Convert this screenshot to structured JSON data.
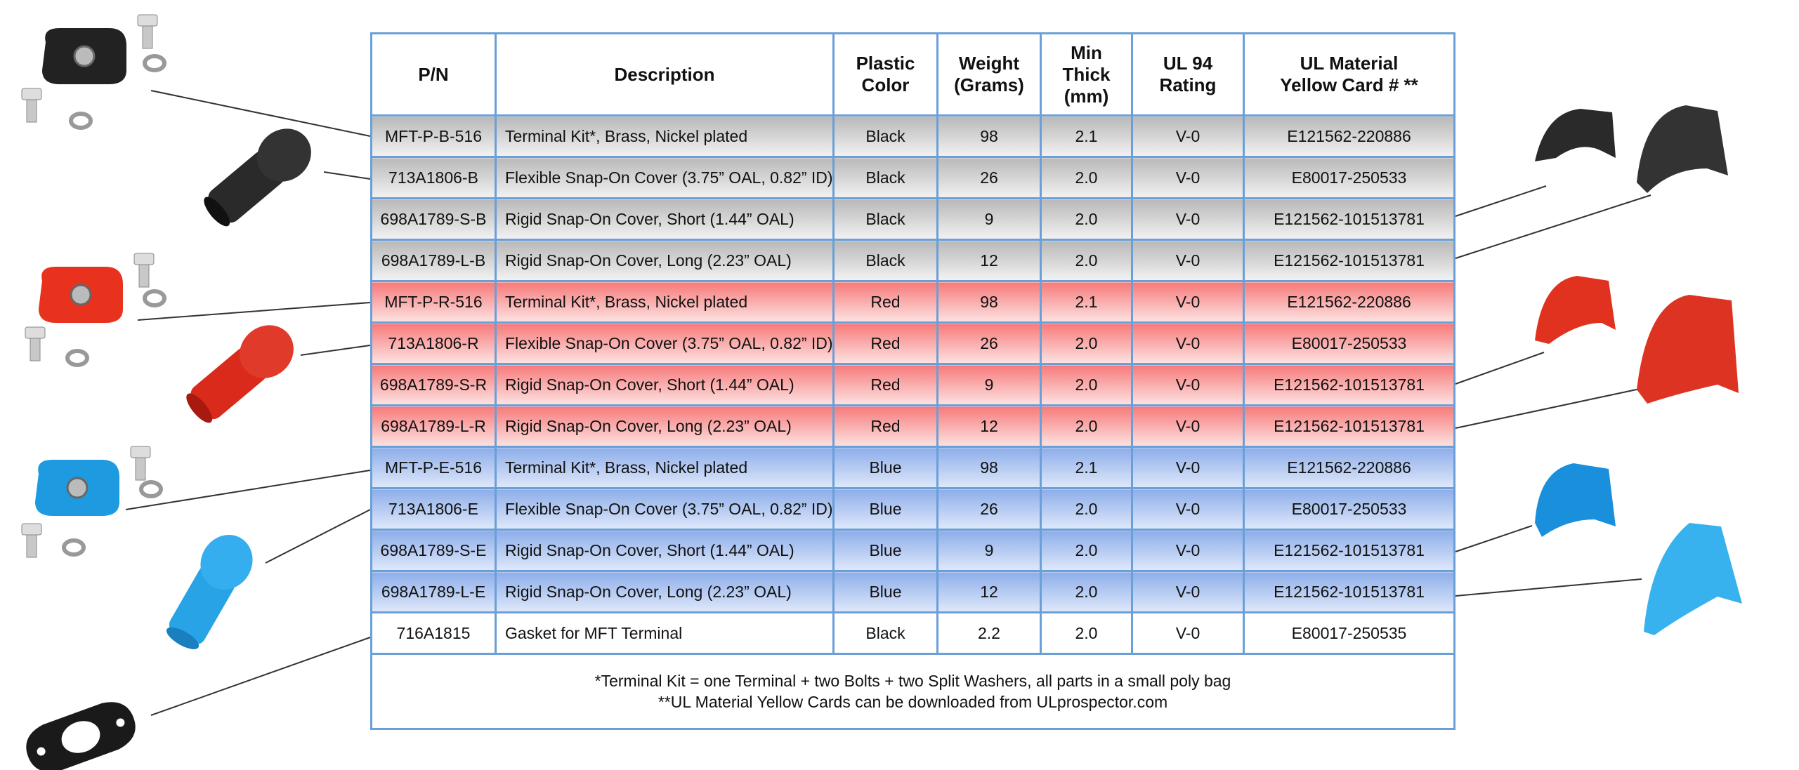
{
  "table": {
    "header": [
      [
        "P/N"
      ],
      [
        "Description"
      ],
      [
        "Plastic",
        "Color"
      ],
      [
        "Weight",
        "(Grams)"
      ],
      [
        "Min",
        "Thick",
        "(mm)"
      ],
      [
        "UL 94",
        "Rating"
      ],
      [
        "UL Material",
        "Yellow Card # **"
      ]
    ],
    "rows": [
      [
        "MFT-P-B-516",
        "Terminal Kit*, Brass, Nickel plated",
        "Black",
        "98",
        "2.1",
        "V-0",
        "E121562-220886"
      ],
      [
        "713A1806-B",
        "Flexible Snap-On Cover (3.75” OAL, 0.82” ID)",
        "Black",
        "26",
        "2.0",
        "V-0",
        "E80017-250533"
      ],
      [
        "698A1789-S-B",
        "Rigid Snap-On Cover, Short (1.44” OAL)",
        "Black",
        "9",
        "2.0",
        "V-0",
        "E121562-101513781"
      ],
      [
        "698A1789-L-B",
        "Rigid Snap-On Cover, Long (2.23” OAL)",
        "Black",
        "12",
        "2.0",
        "V-0",
        "E121562-101513781"
      ],
      [
        "MFT-P-R-516",
        "Terminal Kit*, Brass, Nickel plated",
        "Red",
        "98",
        "2.1",
        "V-0",
        "E121562-220886"
      ],
      [
        "713A1806-R",
        "Flexible Snap-On Cover (3.75” OAL, 0.82” ID)",
        "Red",
        "26",
        "2.0",
        "V-0",
        "E80017-250533"
      ],
      [
        "698A1789-S-R",
        "Rigid Snap-On Cover, Short (1.44” OAL)",
        "Red",
        "9",
        "2.0",
        "V-0",
        "E121562-101513781"
      ],
      [
        "698A1789-L-R",
        "Rigid Snap-On Cover, Long (2.23” OAL)",
        "Red",
        "12",
        "2.0",
        "V-0",
        "E121562-101513781"
      ],
      [
        "MFT-P-E-516",
        "Terminal Kit*, Brass, Nickel plated",
        "Blue",
        "98",
        "2.1",
        "V-0",
        "E121562-220886"
      ],
      [
        "713A1806-E",
        "Flexible Snap-On Cover (3.75” OAL, 0.82” ID)",
        "Blue",
        "26",
        "2.0",
        "V-0",
        "E80017-250533"
      ],
      [
        "698A1789-S-E",
        "Rigid Snap-On Cover, Short (1.44” OAL)",
        "Blue",
        "9",
        "2.0",
        "V-0",
        "E121562-101513781"
      ],
      [
        "698A1789-L-E",
        "Rigid Snap-On Cover, Long (2.23” OAL)",
        "Blue",
        "12",
        "2.0",
        "V-0",
        "E121562-101513781"
      ],
      [
        "716A1815",
        "Gasket for MFT Terminal",
        "Black",
        "2.2",
        "2.0",
        "V-0",
        "E80017-250535"
      ]
    ],
    "footnotes": [
      "*Terminal Kit = one Terminal + two Bolts + two Split Washers, all parts in a small poly bag",
      "**UL Material Yellow Cards can be downloaded from ULprospector.com"
    ]
  }
}
